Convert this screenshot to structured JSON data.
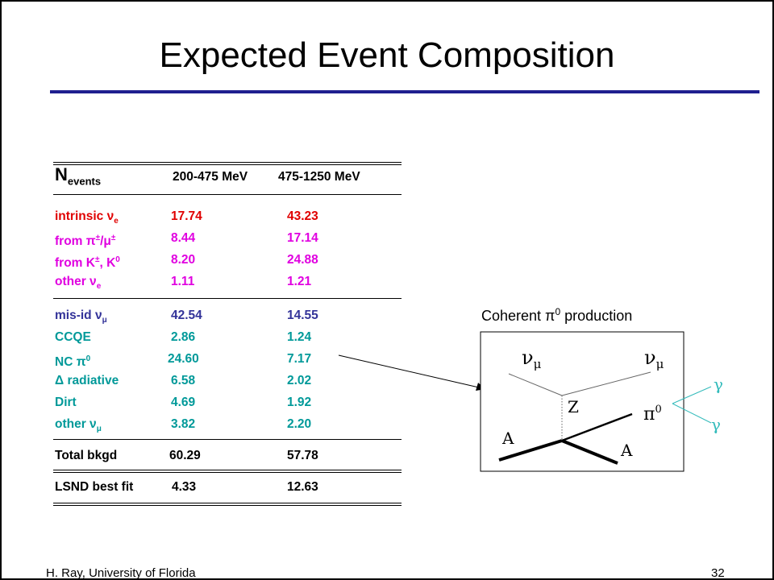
{
  "slide": {
    "title": "Expected Event Composition",
    "footer_left": "H. Ray,  University of Florida",
    "footer_right": "32"
  },
  "table": {
    "header": {
      "label_main": "N",
      "label_sub": "events",
      "col1": "200-475 MeV",
      "col2": "475-1250 MeV"
    },
    "rows": [
      {
        "main": "intrinsic ν",
        "sub": "e",
        "v1": "17.74",
        "v2": "43.23",
        "color": "#e00000"
      },
      {
        "main": "from π",
        "sup": "±",
        "tail": "/μ",
        "sup2": "±",
        "v1": "8.44",
        "v2": "17.14",
        "color": "#e000e0"
      },
      {
        "main": "from K",
        "sup": "±",
        "tail": ", K",
        "sup2": "0",
        "v1": "8.20",
        "v2": "24.88",
        "color": "#e000e0"
      },
      {
        "main": "other ν",
        "sub": "e",
        "v1": "1.11",
        "v2": "1.21",
        "color": "#e000e0"
      },
      {
        "main": "mis-id ν",
        "sub": "μ",
        "v1": "42.54",
        "v2": "14.55",
        "color": "#333399"
      },
      {
        "main": "CCQE",
        "v1": "2.86",
        "v2": "1.24",
        "color": "#009999"
      },
      {
        "main": "NC π",
        "sup": "0",
        "v1": "24.60",
        "v2": "7.17",
        "color": "#009999"
      },
      {
        "main": "Δ radiative",
        "v1": "6.58",
        "v2": "2.02",
        "color": "#009999"
      },
      {
        "main": "Dirt",
        "v1": "4.69",
        "v2": "1.92",
        "color": "#009999"
      },
      {
        "main": "other ν",
        "sub": "μ",
        "v1": "3.82",
        "v2": "2.20",
        "color": "#009999"
      }
    ],
    "total": {
      "label": "Total bkgd",
      "v1": "60.29",
      "v2": "57.78"
    },
    "lsnd": {
      "label": "LSND best fit",
      "v1": "4.33",
      "v2": "12.63"
    }
  },
  "diagram": {
    "caption_main": "Coherent π",
    "caption_sup": "0",
    "caption_tail": " production",
    "nu": "ν",
    "mu": "μ",
    "z": "Z",
    "pi": "π",
    "pi_sup": "0",
    "a": "A",
    "gamma": "γ",
    "gamma_color": "#33bbbb"
  }
}
